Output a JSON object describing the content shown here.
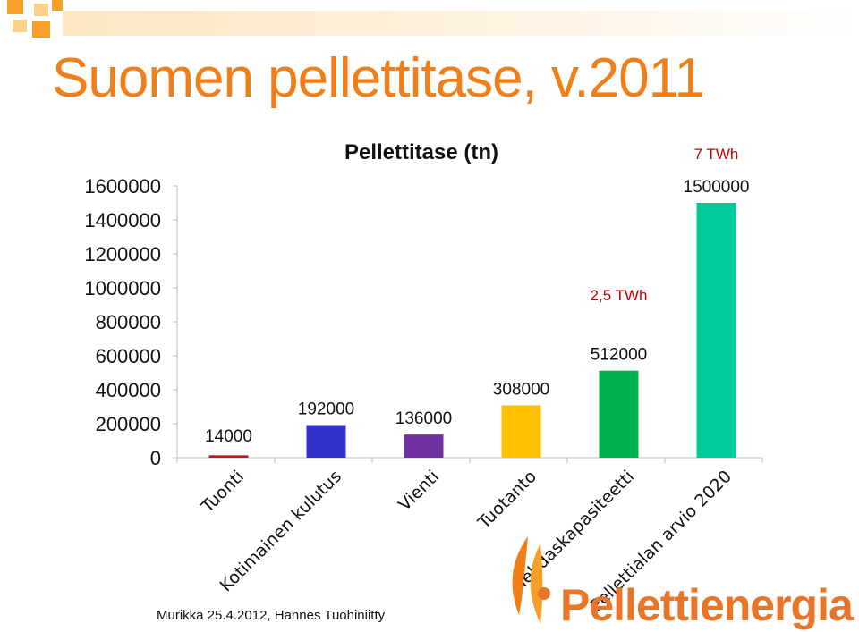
{
  "slide": {
    "title": "Suomen pellettitase, v.2011",
    "footer": "Murikka 25.4.2012, Hannes Tuohiniitty",
    "logo_text": "Pelletti­energia"
  },
  "chart_data": {
    "type": "bar",
    "title": "Pellettitase (tn)",
    "categories": [
      "Tuonti",
      "Kotimainen kulutus",
      "Vienti",
      "Tuotanto",
      "Tehdaskapasiteetti",
      "Pellettialan arvio 2020"
    ],
    "values": [
      14000,
      192000,
      136000,
      308000,
      512000,
      1500000
    ],
    "data_labels": [
      "14000",
      "192000",
      "136000",
      "308000",
      "512000",
      "1500000"
    ],
    "colors": [
      "#c0161d",
      "#3333cc",
      "#7030a0",
      "#ffc000",
      "#00b050",
      "#00cc99"
    ],
    "ylim": [
      0,
      1600000
    ],
    "yticks": [
      0,
      200000,
      400000,
      600000,
      800000,
      1000000,
      1200000,
      1400000,
      1600000
    ],
    "ytick_labels": [
      "0",
      "200000",
      "400000",
      "600000",
      "800000",
      "1000000",
      "1200000",
      "1400000",
      "1600000"
    ],
    "grid": false,
    "annotations": [
      {
        "category": "Tehdaskapasiteetti",
        "text": "2,5 TWh"
      },
      {
        "category": "Pellettialan arvio 2020",
        "text": "7 TWh"
      }
    ],
    "xlabel": "",
    "ylabel": ""
  }
}
